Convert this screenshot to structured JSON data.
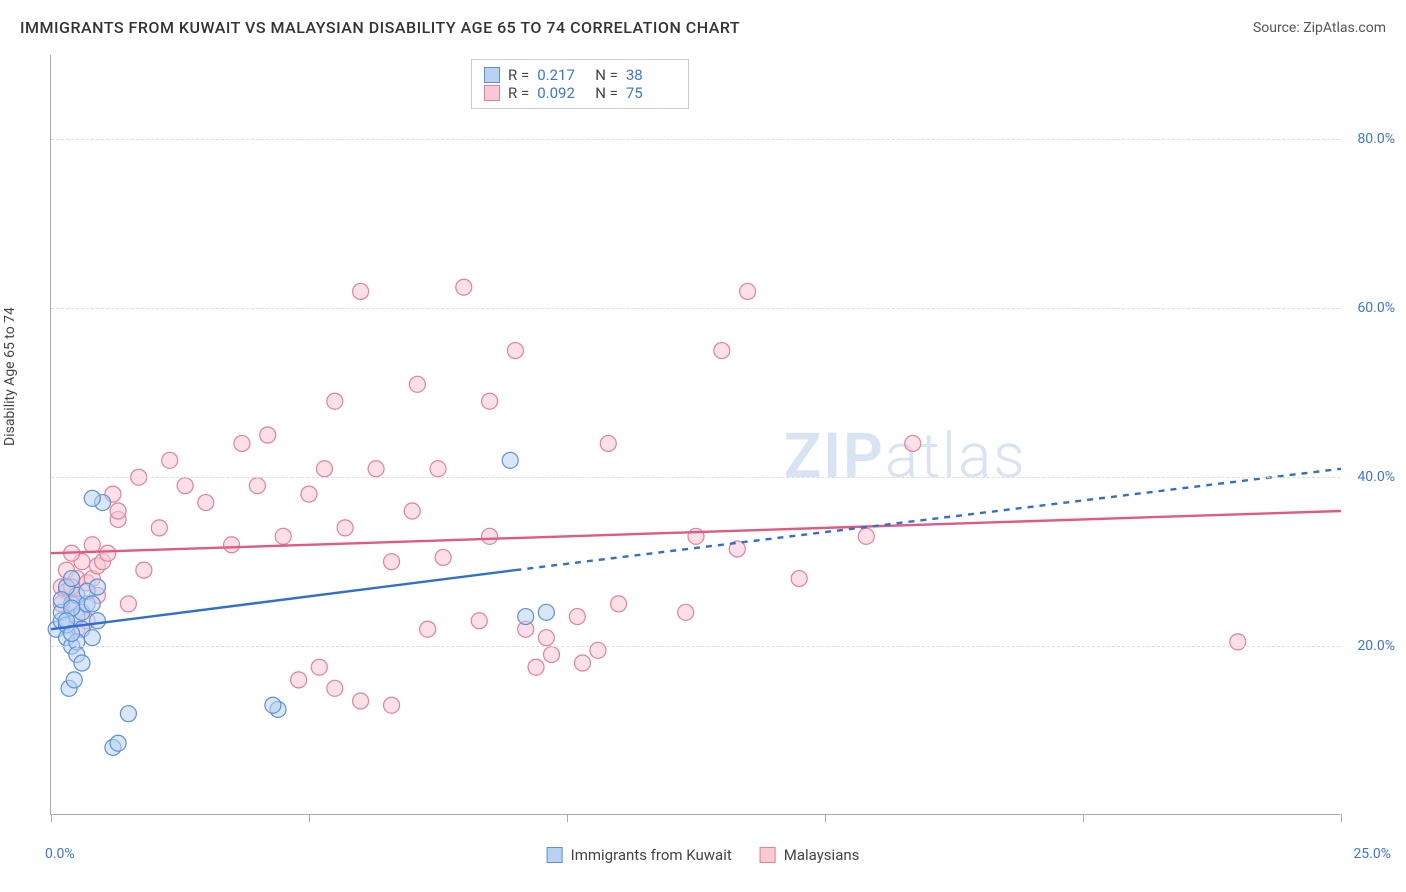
{
  "title": "IMMIGRANTS FROM KUWAIT VS MALAYSIAN DISABILITY AGE 65 TO 74 CORRELATION CHART",
  "source_label": "Source: ZipAtlas.com",
  "axis": {
    "y_title": "Disability Age 65 to 74",
    "x_min_label": "0.0%",
    "x_max_label": "25.0%",
    "xlim": [
      0,
      25
    ],
    "ylim": [
      0,
      90
    ],
    "y_ticks": [
      {
        "v": 20,
        "label": "20.0%"
      },
      {
        "v": 40,
        "label": "40.0%"
      },
      {
        "v": 60,
        "label": "60.0%"
      },
      {
        "v": 80,
        "label": "80.0%"
      }
    ],
    "x_tick_step": 5
  },
  "colors": {
    "series_a_fill": "#b9d2f2",
    "series_a_stroke": "#5a91d6",
    "series_b_fill": "#f8c8d4",
    "series_b_stroke": "#e57f9a",
    "grid": "#dddddd",
    "axis_line": "#aaaaaa",
    "tick_label": "#3b75d8",
    "trend_a": "#2f6fd0",
    "trend_b": "#e15a84",
    "watermark": "#d8e3f3"
  },
  "marker_radius": 8,
  "fill_opacity": 0.55,
  "stats_legend": [
    {
      "swatch": "a",
      "r_label": "R =",
      "r": "0.217",
      "n_label": "N =",
      "n": "38"
    },
    {
      "swatch": "b",
      "r_label": "R =",
      "r": "0.092",
      "n_label": "N =",
      "n": "75"
    }
  ],
  "bottom_legend": [
    {
      "swatch": "a",
      "label": "Immigrants from Kuwait"
    },
    {
      "swatch": "b",
      "label": "Malaysians"
    }
  ],
  "watermark": {
    "zip": "ZIP",
    "atlas": "atlas"
  },
  "trendlines": {
    "a": {
      "solid": [
        [
          0,
          22
        ],
        [
          9,
          29
        ]
      ],
      "dashed": [
        [
          9,
          29
        ],
        [
          25,
          41
        ]
      ]
    },
    "b": {
      "solid": [
        [
          0,
          31
        ],
        [
          25,
          36
        ]
      ]
    }
  },
  "series_a": [
    [
      0.1,
      22
    ],
    [
      0.2,
      23
    ],
    [
      0.3,
      21
    ],
    [
      0.2,
      24
    ],
    [
      0.4,
      25
    ],
    [
      0.3,
      22.5
    ],
    [
      0.5,
      23.5
    ],
    [
      0.4,
      20
    ],
    [
      0.6,
      24
    ],
    [
      0.5,
      26
    ],
    [
      0.3,
      27
    ],
    [
      0.7,
      25
    ],
    [
      0.4,
      28
    ],
    [
      0.2,
      25.5
    ],
    [
      0.6,
      22
    ],
    [
      0.5,
      20.5
    ],
    [
      0.8,
      21
    ],
    [
      0.4,
      24.5
    ],
    [
      0.3,
      23
    ],
    [
      0.7,
      26.5
    ],
    [
      0.5,
      19
    ],
    [
      0.6,
      18
    ],
    [
      0.9,
      23
    ],
    [
      0.4,
      21.5
    ],
    [
      0.8,
      25
    ],
    [
      1.0,
      37
    ],
    [
      0.8,
      37.5
    ],
    [
      1.5,
      12
    ],
    [
      1.2,
      8
    ],
    [
      1.3,
      8.5
    ],
    [
      0.35,
      15
    ],
    [
      0.45,
      16
    ],
    [
      4.4,
      12.5
    ],
    [
      4.3,
      13
    ],
    [
      8.9,
      42
    ],
    [
      9.6,
      24
    ],
    [
      9.2,
      23.5
    ],
    [
      0.9,
      27
    ]
  ],
  "series_b": [
    [
      0.2,
      27
    ],
    [
      0.3,
      29
    ],
    [
      0.4,
      26
    ],
    [
      0.5,
      28
    ],
    [
      0.6,
      30
    ],
    [
      0.4,
      31
    ],
    [
      0.7,
      27.5
    ],
    [
      0.5,
      25
    ],
    [
      0.8,
      28
    ],
    [
      0.3,
      26.5
    ],
    [
      0.9,
      29.5
    ],
    [
      0.6,
      24
    ],
    [
      0.4,
      27
    ],
    [
      1.0,
      30
    ],
    [
      0.5,
      22
    ],
    [
      0.7,
      23
    ],
    [
      1.1,
      31
    ],
    [
      0.8,
      32
    ],
    [
      0.2,
      25
    ],
    [
      0.9,
      26
    ],
    [
      1.3,
      35
    ],
    [
      1.2,
      38
    ],
    [
      1.3,
      36
    ],
    [
      1.5,
      25
    ],
    [
      1.8,
      29
    ],
    [
      1.7,
      40
    ],
    [
      2.1,
      34
    ],
    [
      2.3,
      42
    ],
    [
      2.6,
      39
    ],
    [
      3.0,
      37
    ],
    [
      4.0,
      39
    ],
    [
      3.5,
      32
    ],
    [
      3.7,
      44
    ],
    [
      4.2,
      45
    ],
    [
      4.5,
      33
    ],
    [
      5.0,
      38
    ],
    [
      5.3,
      41
    ],
    [
      5.5,
      49
    ],
    [
      5.7,
      34
    ],
    [
      6.0,
      62
    ],
    [
      6.3,
      41
    ],
    [
      6.6,
      30
    ],
    [
      6.0,
      13.5
    ],
    [
      6.6,
      13
    ],
    [
      5.5,
      15
    ],
    [
      4.8,
      16
    ],
    [
      5.2,
      17.5
    ],
    [
      7.0,
      36
    ],
    [
      7.1,
      51
    ],
    [
      7.3,
      22
    ],
    [
      7.5,
      41
    ],
    [
      8.0,
      62.5
    ],
    [
      8.3,
      23
    ],
    [
      8.5,
      49
    ],
    [
      9.0,
      55
    ],
    [
      9.2,
      22
    ],
    [
      9.4,
      17.5
    ],
    [
      9.7,
      19
    ],
    [
      9.6,
      21
    ],
    [
      10.2,
      23.5
    ],
    [
      10.8,
      44
    ],
    [
      10.3,
      18
    ],
    [
      10.6,
      19.5
    ],
    [
      11.0,
      25
    ],
    [
      12.3,
      24
    ],
    [
      12.5,
      33
    ],
    [
      13.0,
      55
    ],
    [
      13.3,
      31.5
    ],
    [
      13.5,
      62
    ],
    [
      14.5,
      28
    ],
    [
      15.8,
      33
    ],
    [
      16.7,
      44
    ],
    [
      8.5,
      33
    ],
    [
      7.6,
      30.5
    ],
    [
      23.0,
      20.5
    ]
  ]
}
